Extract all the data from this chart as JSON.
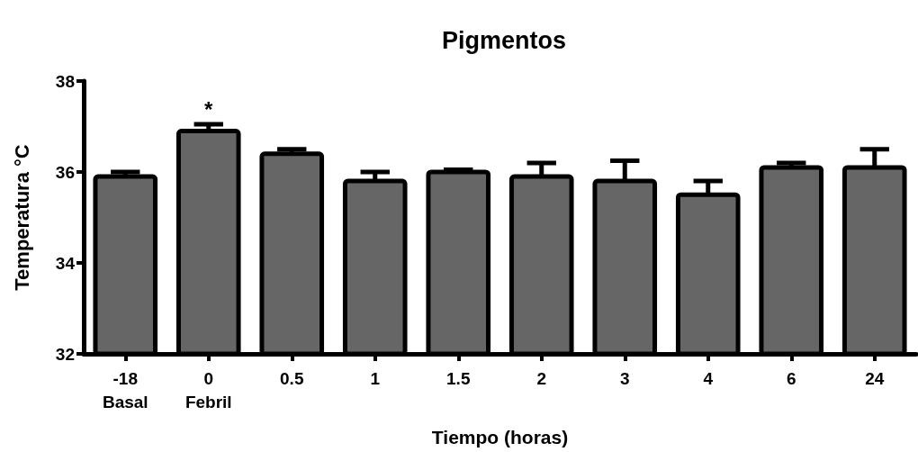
{
  "chart_data": {
    "type": "bar",
    "title": "Pigmentos",
    "xlabel": "Tiempo (horas)",
    "ylabel": "Temperatura °C",
    "categories": [
      "-18\nBasal",
      "0\nFebril",
      "0.5",
      "1",
      "1.5",
      "2",
      "3",
      "4",
      "6",
      "24"
    ],
    "values": [
      35.9,
      36.9,
      36.4,
      35.8,
      36.0,
      35.9,
      35.8,
      35.5,
      36.1,
      36.1
    ],
    "errors": [
      0.1,
      0.15,
      0.1,
      0.2,
      0.05,
      0.3,
      0.45,
      0.3,
      0.1,
      0.4
    ],
    "color": "#666666",
    "ylim": [
      32,
      38
    ],
    "yticks": [
      32,
      34,
      36,
      38
    ],
    "annotations": [
      {
        "text": "*",
        "x": "0\nFebril",
        "y": 36.9
      }
    ]
  }
}
